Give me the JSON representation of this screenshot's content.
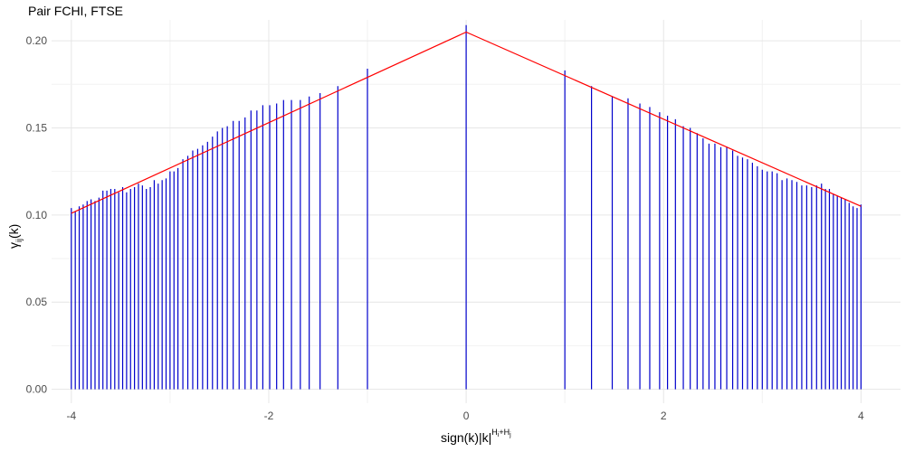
{
  "chart_data": {
    "type": "bar",
    "title": "Pair FCHI, FTSE",
    "xlabel": {
      "base": "sign(k)|k|",
      "exponent": "H",
      "exp_sub_i": "i",
      "exp_plus": "+H",
      "exp_sub_j": "j"
    },
    "ylabel": {
      "gamma": "γ",
      "sub": "ij",
      "rest": "(k)"
    },
    "xlim": [
      -4.2,
      4.4
    ],
    "ylim": [
      -0.008,
      0.212
    ],
    "x_ticks": [
      -4,
      -2,
      0,
      2,
      4
    ],
    "x_tick_labels": [
      "-4",
      "-2",
      "0",
      "2",
      "4"
    ],
    "y_ticks": [
      0.0,
      0.05,
      0.1,
      0.15,
      0.2
    ],
    "y_tick_labels": [
      "0.00",
      "0.05",
      "0.10",
      "0.15",
      "0.20"
    ],
    "grid": true,
    "series": [
      {
        "mark": "vertical-lines",
        "color": "#0000cc",
        "x": [
          -4.0,
          -3.96,
          -3.92,
          -3.88,
          -3.84,
          -3.8,
          -3.76,
          -3.72,
          -3.68,
          -3.64,
          -3.6,
          -3.56,
          -3.52,
          -3.48,
          -3.44,
          -3.4,
          -3.36,
          -3.32,
          -3.28,
          -3.24,
          -3.2,
          -3.16,
          -3.12,
          -3.08,
          -3.04,
          -3.0,
          -2.96,
          -2.92,
          -2.87,
          -2.82,
          -2.77,
          -2.72,
          -2.67,
          -2.62,
          -2.57,
          -2.52,
          -2.47,
          -2.42,
          -2.36,
          -2.3,
          -2.24,
          -2.18,
          -2.12,
          -2.06,
          -1.99,
          -1.92,
          -1.85,
          -1.77,
          -1.68,
          -1.59,
          -1.48,
          -1.3,
          -1.0,
          0.0,
          1.0,
          1.27,
          1.48,
          1.64,
          1.76,
          1.86,
          1.96,
          2.04,
          2.12,
          2.2,
          2.27,
          2.34,
          2.4,
          2.46,
          2.52,
          2.58,
          2.64,
          2.7,
          2.75,
          2.8,
          2.85,
          2.9,
          2.95,
          3.0,
          3.05,
          3.1,
          3.15,
          3.2,
          3.25,
          3.3,
          3.35,
          3.4,
          3.45,
          3.5,
          3.55,
          3.6,
          3.64,
          3.68,
          3.72,
          3.76,
          3.8,
          3.84,
          3.88,
          3.92,
          3.96,
          4.0
        ],
        "y": [
          0.104,
          0.102,
          0.105,
          0.106,
          0.108,
          0.109,
          0.108,
          0.11,
          0.114,
          0.114,
          0.115,
          0.115,
          0.113,
          0.116,
          0.113,
          0.115,
          0.116,
          0.118,
          0.117,
          0.115,
          0.116,
          0.12,
          0.118,
          0.12,
          0.121,
          0.125,
          0.125,
          0.127,
          0.132,
          0.134,
          0.137,
          0.138,
          0.14,
          0.142,
          0.145,
          0.148,
          0.15,
          0.151,
          0.154,
          0.154,
          0.156,
          0.16,
          0.16,
          0.163,
          0.163,
          0.164,
          0.166,
          0.166,
          0.166,
          0.168,
          0.17,
          0.174,
          0.184,
          0.209,
          0.183,
          0.174,
          0.168,
          0.167,
          0.164,
          0.162,
          0.159,
          0.157,
          0.155,
          0.151,
          0.15,
          0.147,
          0.144,
          0.141,
          0.141,
          0.139,
          0.139,
          0.137,
          0.134,
          0.133,
          0.132,
          0.13,
          0.128,
          0.126,
          0.125,
          0.125,
          0.124,
          0.12,
          0.121,
          0.12,
          0.119,
          0.117,
          0.117,
          0.116,
          0.117,
          0.118,
          0.115,
          0.115,
          0.112,
          0.111,
          0.11,
          0.109,
          0.107,
          0.105,
          0.104,
          0.106
        ]
      },
      {
        "mark": "line",
        "color": "#ff0000",
        "x": [
          -4.0,
          0.0,
          4.0
        ],
        "y": [
          0.101,
          0.205,
          0.105
        ]
      }
    ]
  }
}
